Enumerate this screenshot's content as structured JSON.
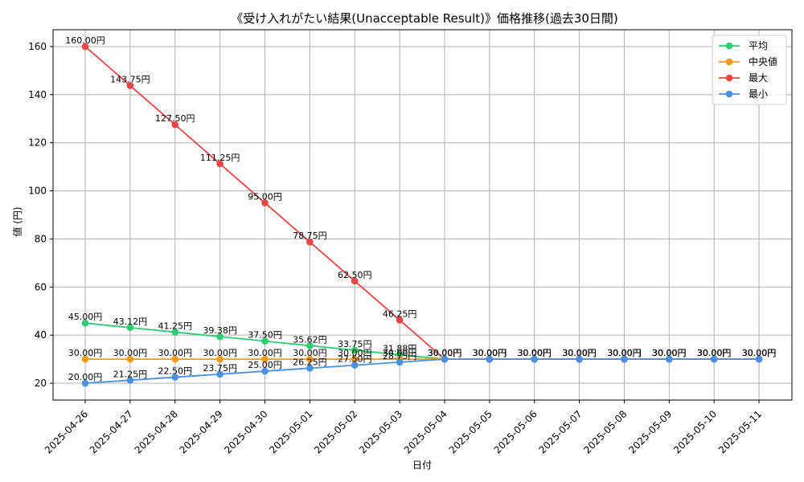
{
  "chart_data": {
    "type": "line",
    "title": "《受け入れがたい結果(Unacceptable Result)》価格推移(過去30日間)",
    "xlabel": "日付",
    "ylabel": "値 (円)",
    "ylim": [
      13,
      167
    ],
    "yticks": [
      20,
      40,
      60,
      80,
      100,
      120,
      140,
      160
    ],
    "grid": true,
    "legend_position": "top-right",
    "categories": [
      "2025-04-26",
      "2025-04-27",
      "2025-04-28",
      "2025-04-29",
      "2025-04-30",
      "2025-05-01",
      "2025-05-02",
      "2025-05-03",
      "2025-05-04",
      "2025-05-05",
      "2025-05-06",
      "2025-05-07",
      "2025-05-08",
      "2025-05-09",
      "2025-05-10",
      "2025-05-11"
    ],
    "series": [
      {
        "name": "平均",
        "color": "#2ecc71",
        "values": [
          45.0,
          43.12,
          41.25,
          39.38,
          37.5,
          35.62,
          33.75,
          31.88,
          30.0,
          30.0,
          30.0,
          30.0,
          30.0,
          30.0,
          30.0,
          30.0
        ],
        "labels": [
          "45.00円",
          "43.12円",
          "41.25円",
          "39.38円",
          "37.50円",
          "35.62円",
          "33.75円",
          "31.88円",
          "30.00円",
          "30.00円",
          "30.00円",
          "30.00円",
          "30.00円",
          "30.00円",
          "30.00円",
          "30.00円"
        ]
      },
      {
        "name": " 中央値",
        "color": "#f39c12",
        "values": [
          30.0,
          30.0,
          30.0,
          30.0,
          30.0,
          30.0,
          30.0,
          30.0,
          30.0,
          30.0,
          30.0,
          30.0,
          30.0,
          30.0,
          30.0,
          30.0
        ],
        "labels": [
          "30.00円",
          "30.00円",
          "30.00円",
          "30.00円",
          "30.00円",
          "30.00円",
          "30.00円",
          "30.00円",
          "30.00円",
          "30.00円",
          "30.00円",
          "30.00円",
          "30.00円",
          "30.00円",
          "30.00円",
          "30.00円"
        ]
      },
      {
        "name": "最大",
        "color": "#e84545",
        "values": [
          160.0,
          143.75,
          127.5,
          111.25,
          95.0,
          78.75,
          62.5,
          46.25,
          30.0,
          30.0,
          30.0,
          30.0,
          30.0,
          30.0,
          30.0,
          30.0
        ],
        "labels": [
          "160.00円",
          "143.75円",
          "127.50円",
          "111.25円",
          "95.00円",
          "78.75円",
          "62.50円",
          "46.25円",
          "30.00円",
          "30.00円",
          "30.00円",
          "30.00円",
          "30.00円",
          "30.00円",
          "30.00円",
          "30.00円"
        ]
      },
      {
        "name": "最小",
        "color": "#4a90e2",
        "values": [
          20.0,
          21.25,
          22.5,
          23.75,
          25.0,
          26.25,
          27.5,
          28.75,
          30.0,
          30.0,
          30.0,
          30.0,
          30.0,
          30.0,
          30.0,
          30.0
        ],
        "labels": [
          "20.00円",
          "21.25円",
          "22.50円",
          "23.75円",
          "25.00円",
          "26.25円",
          "27.50円",
          "28.75円",
          "30.00円",
          "30.00円",
          "30.00円",
          "30.00円",
          "30.00円",
          "30.00円",
          "30.00円",
          "30.00円"
        ]
      }
    ]
  }
}
